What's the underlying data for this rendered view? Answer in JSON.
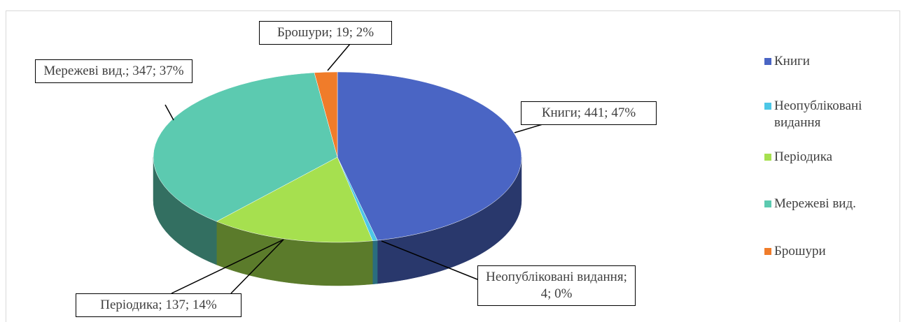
{
  "chart_data": {
    "type": "pie",
    "categories": [
      "Книги",
      "Неопубліковані видання",
      "Періодика",
      "Мережеві вид.",
      "Брошури"
    ],
    "values": [
      441,
      4,
      137,
      347,
      19
    ],
    "value_labels": [
      "Книги; 441; 47%",
      "Неопубліковані видання; 4; 0%",
      "Періодика; 137; 14%",
      "Мережеві вид.; 347; 37%",
      "Брошури; 19; 2%"
    ],
    "colors": [
      "#4a65c4",
      "#4dc7e6",
      "#a6e04f",
      "#5ccab0",
      "#f07c2a"
    ],
    "legend": "right"
  }
}
